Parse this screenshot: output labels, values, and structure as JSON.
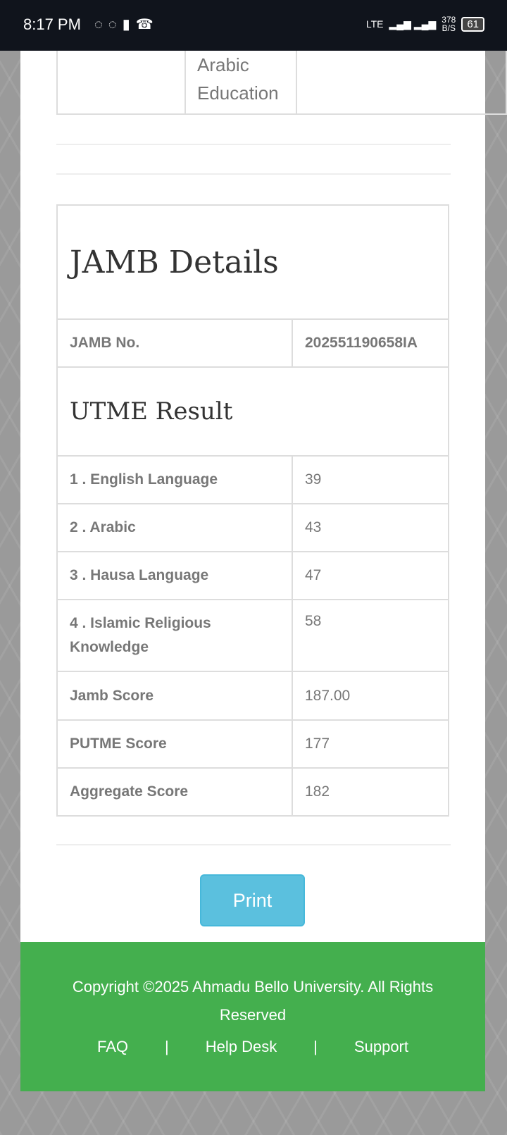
{
  "status_bar": {
    "time": "8:17 PM",
    "network": "LTE",
    "speed": "378",
    "speed_unit": "B/S",
    "battery": "61"
  },
  "top_table": {
    "cell": "Arabic Education"
  },
  "jamb": {
    "title": "JAMB Details",
    "jamb_no_label": "JAMB No.",
    "jamb_no": "202551190658IA",
    "utme_title": "UTME Result",
    "subjects": [
      {
        "label": "1 . English Language",
        "score": "39"
      },
      {
        "label": "2 . Arabic",
        "score": "43"
      },
      {
        "label": "3 . Hausa Language",
        "score": "47"
      },
      {
        "label": "4 . Islamic Religious Knowledge",
        "score": "58"
      }
    ],
    "jamb_score_label": "Jamb Score",
    "jamb_score": "187.00",
    "putme_label": "PUTME Score",
    "putme": "177",
    "aggregate_label": "Aggregate Score",
    "aggregate": "182"
  },
  "print_label": "Print",
  "footer": {
    "copyright": "Copyright ©2025 Ahmadu Bello University. All Rights Reserved",
    "links": [
      "FAQ",
      "Help Desk",
      "Support"
    ],
    "separator": "|"
  },
  "colors": {
    "footer": "#44af4e",
    "print_button": "#5bc0de"
  }
}
